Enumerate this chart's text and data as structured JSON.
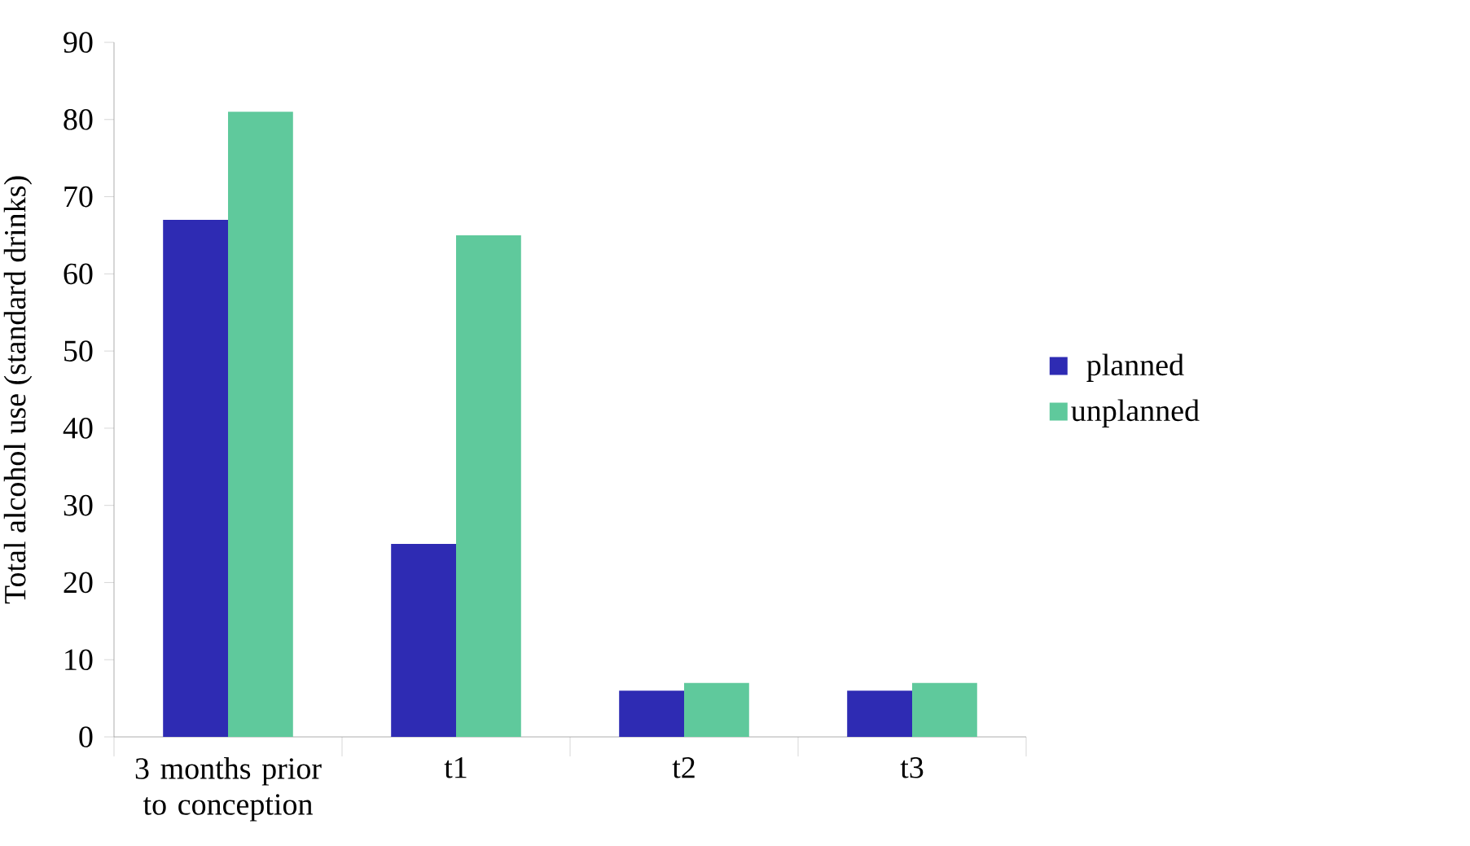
{
  "chart_data": {
    "type": "bar",
    "ylabel": "Total alcohol use (standard drinks)",
    "categories": [
      "3 months prior to conception",
      "t1",
      "t2",
      "t3"
    ],
    "series": [
      {
        "name": "planned",
        "color": "#2e2bb3",
        "values": [
          67,
          25,
          6,
          6
        ]
      },
      {
        "name": "unplanned",
        "color": "#5fc99c",
        "values": [
          81,
          65,
          7,
          7
        ]
      }
    ],
    "ylim": [
      0,
      90
    ],
    "yticks": [
      0,
      10,
      20,
      30,
      40,
      50,
      60,
      70,
      80,
      90
    ],
    "legend": "right"
  }
}
